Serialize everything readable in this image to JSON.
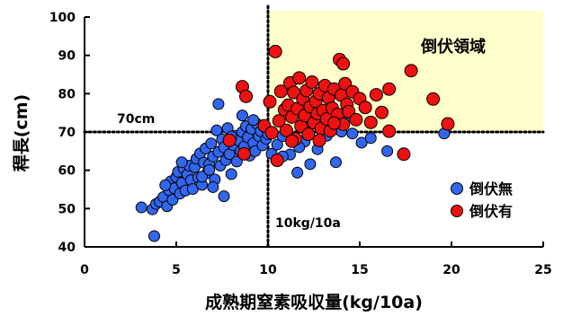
{
  "chart_data": {
    "type": "scatter",
    "xlabel": "成熟期窒素吸収量(kg/10a)",
    "ylabel": "稈長(cm)",
    "xlim": [
      0,
      25
    ],
    "ylim": [
      40,
      100
    ],
    "xticks": [
      0,
      5,
      10,
      15,
      20,
      25
    ],
    "yticks": [
      40,
      50,
      60,
      70,
      80,
      90,
      100
    ],
    "grid": false,
    "legend_position": "bottom-right",
    "colors": {
      "no_lodging": "#3366ee",
      "lodging": "#ee1111",
      "zone": "#ffffcc"
    },
    "reference_lines": [
      {
        "axis": "y",
        "value": 70,
        "label": "70cm"
      },
      {
        "axis": "x",
        "value": 10,
        "label": "10kg/10a"
      }
    ],
    "highlight_region": {
      "x": [
        10,
        25
      ],
      "y": [
        70,
        100
      ],
      "label": "倒伏領域"
    },
    "series": [
      {
        "name": "倒伏無",
        "color": "#3366ee",
        "points": [
          [
            3.1,
            50.3
          ],
          [
            3.7,
            49.8
          ],
          [
            3.8,
            42.8
          ],
          [
            3.9,
            51.2
          ],
          [
            4.1,
            51.8
          ],
          [
            4.3,
            53.0
          ],
          [
            4.5,
            50.6
          ],
          [
            4.6,
            54.8
          ],
          [
            4.7,
            57.1
          ],
          [
            4.8,
            52.3
          ],
          [
            4.9,
            55.3
          ],
          [
            5.0,
            58.2
          ],
          [
            5.1,
            59.6
          ],
          [
            5.2,
            53.9
          ],
          [
            5.3,
            56.7
          ],
          [
            5.4,
            60.5
          ],
          [
            5.5,
            54.7
          ],
          [
            5.6,
            58.9
          ],
          [
            5.7,
            61.2
          ],
          [
            5.8,
            57.4
          ],
          [
            5.9,
            55.1
          ],
          [
            6.0,
            60.8
          ],
          [
            6.1,
            63.0
          ],
          [
            6.2,
            58.1
          ],
          [
            6.3,
            64.4
          ],
          [
            6.4,
            56.2
          ],
          [
            6.5,
            62.0
          ],
          [
            6.6,
            65.7
          ],
          [
            6.7,
            59.3
          ],
          [
            6.8,
            61.6
          ],
          [
            6.9,
            67.0
          ],
          [
            7.0,
            63.6
          ],
          [
            7.1,
            57.6
          ],
          [
            7.2,
            70.4
          ],
          [
            7.3,
            64.8
          ],
          [
            7.4,
            61.2
          ],
          [
            7.5,
            68.1
          ],
          [
            7.6,
            66.0
          ],
          [
            7.7,
            62.6
          ],
          [
            7.8,
            71.0
          ],
          [
            7.9,
            64.2
          ],
          [
            8.0,
            59.0
          ],
          [
            8.1,
            66.6
          ],
          [
            8.2,
            69.0
          ],
          [
            8.3,
            62.3
          ],
          [
            8.4,
            67.8
          ],
          [
            8.5,
            64.9
          ],
          [
            8.6,
            70.0
          ],
          [
            8.7,
            66.2
          ],
          [
            8.8,
            71.5
          ],
          [
            8.9,
            68.6
          ],
          [
            9.0,
            63.8
          ],
          [
            9.1,
            70.8
          ],
          [
            9.2,
            67.1
          ],
          [
            9.3,
            65.0
          ],
          [
            9.4,
            72.1
          ],
          [
            9.5,
            68.9
          ],
          [
            9.6,
            70.2
          ],
          [
            9.7,
            66.5
          ],
          [
            9.8,
            71.4
          ],
          [
            9.9,
            68.2
          ],
          [
            10.0,
            69.4
          ],
          [
            7.3,
            77.3
          ],
          [
            8.6,
            74.3
          ],
          [
            6.4,
            58.3
          ],
          [
            7.0,
            55.6
          ],
          [
            7.6,
            53.2
          ],
          [
            5.3,
            62.1
          ],
          [
            6.8,
            60.1
          ],
          [
            8.0,
            68.8
          ],
          [
            9.2,
            73.1
          ],
          [
            4.4,
            56.1
          ],
          [
            10.2,
            64.3
          ],
          [
            10.5,
            66.7
          ],
          [
            10.8,
            68.9
          ],
          [
            11.2,
            64.1
          ],
          [
            11.6,
            59.4
          ],
          [
            12.0,
            67.5
          ],
          [
            12.3,
            61.6
          ],
          [
            12.7,
            65.5
          ],
          [
            13.2,
            69.0
          ],
          [
            13.7,
            62.1
          ],
          [
            14.2,
            73.3
          ],
          [
            14.6,
            69.6
          ],
          [
            15.1,
            67.2
          ],
          [
            15.6,
            68.4
          ],
          [
            16.5,
            65.0
          ],
          [
            14.0,
            70.1
          ],
          [
            12.0,
            71.2
          ],
          [
            10.8,
            63.6
          ],
          [
            19.6,
            69.6
          ],
          [
            11.7,
            66.0
          ]
        ]
      },
      {
        "name": "倒伏有",
        "color": "#ee1111",
        "points": [
          [
            7.9,
            67.8
          ],
          [
            8.6,
            81.8
          ],
          [
            8.8,
            79.3
          ],
          [
            8.7,
            64.3
          ],
          [
            9.8,
            71.6
          ],
          [
            10.1,
            77.9
          ],
          [
            10.2,
            69.8
          ],
          [
            10.4,
            91.0
          ],
          [
            10.5,
            62.6
          ],
          [
            10.6,
            72.9
          ],
          [
            10.7,
            80.6
          ],
          [
            10.9,
            75.8
          ],
          [
            11.0,
            70.4
          ],
          [
            11.1,
            77.0
          ],
          [
            11.2,
            82.8
          ],
          [
            11.3,
            73.9
          ],
          [
            11.4,
            80.3
          ],
          [
            11.5,
            68.2
          ],
          [
            11.6,
            76.1
          ],
          [
            11.7,
            84.1
          ],
          [
            11.8,
            71.5
          ],
          [
            11.9,
            78.6
          ],
          [
            12.0,
            74.3
          ],
          [
            12.1,
            80.8
          ],
          [
            12.2,
            69.4
          ],
          [
            12.3,
            76.6
          ],
          [
            12.4,
            83.0
          ],
          [
            12.5,
            72.4
          ],
          [
            12.6,
            78.0
          ],
          [
            12.7,
            74.8
          ],
          [
            12.8,
            80.0
          ],
          [
            12.9,
            70.9
          ],
          [
            13.0,
            75.6
          ],
          [
            13.1,
            82.1
          ],
          [
            13.2,
            73.4
          ],
          [
            13.3,
            78.9
          ],
          [
            13.4,
            70.3
          ],
          [
            13.5,
            76.2
          ],
          [
            13.6,
            81.2
          ],
          [
            13.8,
            74.6
          ],
          [
            13.9,
            88.9
          ],
          [
            14.0,
            79.6
          ],
          [
            14.1,
            72.0
          ],
          [
            14.2,
            82.6
          ],
          [
            14.3,
            77.2
          ],
          [
            14.4,
            75.3
          ],
          [
            14.6,
            80.5
          ],
          [
            14.8,
            73.2
          ],
          [
            15.0,
            78.7
          ],
          [
            15.3,
            76.4
          ],
          [
            15.6,
            72.5
          ],
          [
            15.9,
            79.7
          ],
          [
            16.2,
            75.1
          ],
          [
            16.6,
            81.2
          ],
          [
            16.6,
            70.2
          ],
          [
            17.4,
            64.2
          ],
          [
            17.8,
            86.0
          ],
          [
            19.0,
            78.6
          ],
          [
            19.8,
            72.1
          ],
          [
            14.1,
            87.8
          ],
          [
            12.8,
            67.8
          ],
          [
            11.3,
            67.6
          ],
          [
            13.6,
            72.3
          ]
        ]
      }
    ]
  }
}
